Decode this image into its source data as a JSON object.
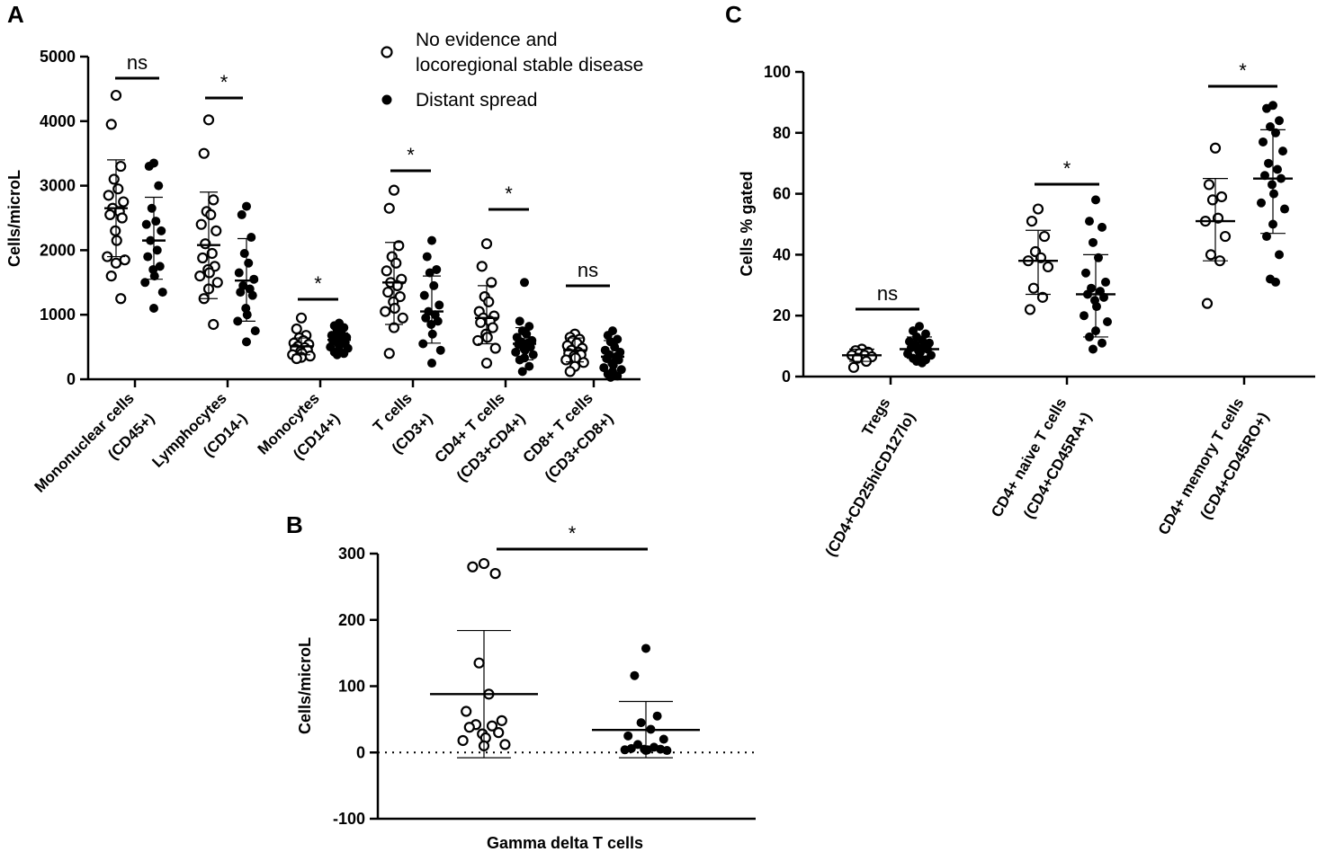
{
  "legend": {
    "open_label_1": "No evidence and",
    "open_label_2": "locoregional stable disease",
    "filled_label": "Distant spread"
  },
  "chart_data": [
    {
      "panel": "A",
      "type": "scatter",
      "ylabel": "Cells/microL",
      "ylim": [
        0,
        5000
      ],
      "yticks": [
        0,
        1000,
        2000,
        3000,
        4000,
        5000
      ],
      "categories": [
        {
          "line1": "Mononuclear cells",
          "line2": "(CD45+)"
        },
        {
          "line1": "Lymphocytes",
          "line2": "(CD14-)"
        },
        {
          "line1": "Monocytes",
          "line2": "(CD14+)"
        },
        {
          "line1": "T cells",
          "line2": "(CD3+)"
        },
        {
          "line1": "CD4+ T cells",
          "line2": "(CD3+CD4+)"
        },
        {
          "line1": "CD8+ T cells",
          "line2": "(CD3+CD8+)"
        }
      ],
      "significance": [
        "ns",
        "*",
        "*",
        "*",
        "*",
        "ns"
      ],
      "series": [
        {
          "name": "No evidence and locoregional stable disease",
          "marker": "open",
          "groups": [
            {
              "mean": 2650,
              "sd_low": 1900,
              "sd_high": 3400,
              "values": [
                4400,
                3950,
                3300,
                3100,
                2950,
                2850,
                2750,
                2650,
                2600,
                2550,
                2500,
                2300,
                2150,
                1900,
                1850,
                1800,
                1600,
                1250
              ]
            },
            {
              "mean": 2080,
              "sd_low": 1250,
              "sd_high": 2900,
              "values": [
                4020,
                3500,
                2780,
                2600,
                2550,
                2400,
                2300,
                2100,
                1950,
                1880,
                1750,
                1700,
                1650,
                1600,
                1500,
                1400,
                1250,
                850
              ]
            },
            {
              "mean": 510,
              "sd_low": 380,
              "sd_high": 640,
              "values": [
                950,
                780,
                680,
                640,
                600,
                560,
                540,
                510,
                490,
                470,
                450,
                430,
                400,
                380,
                360,
                340,
                320
              ]
            },
            {
              "mean": 1500,
              "sd_low": 850,
              "sd_high": 2120,
              "values": [
                2930,
                2650,
                2070,
                1900,
                1800,
                1680,
                1550,
                1500,
                1450,
                1350,
                1280,
                1200,
                1100,
                1050,
                950,
                800,
                400
              ]
            },
            {
              "mean": 950,
              "sd_low": 550,
              "sd_high": 1450,
              "values": [
                2100,
                1750,
                1500,
                1280,
                1200,
                1050,
                980,
                950,
                900,
                880,
                800,
                700,
                650,
                600,
                480,
                250
              ]
            },
            {
              "mean": 450,
              "sd_low": 270,
              "sd_high": 640,
              "values": [
                700,
                650,
                620,
                600,
                560,
                520,
                480,
                450,
                420,
                400,
                380,
                360,
                330,
                300,
                260,
                200,
                120
              ]
            }
          ]
        },
        {
          "name": "Distant spread",
          "marker": "filled",
          "groups": [
            {
              "mean": 2150,
              "sd_low": 1550,
              "sd_high": 2820,
              "values": [
                3350,
                3300,
                3000,
                2650,
                2450,
                2400,
                2300,
                2150,
                2000,
                1900,
                1750,
                1700,
                1600,
                1500,
                1350,
                1100
              ]
            },
            {
              "mean": 1530,
              "sd_low": 900,
              "sd_high": 2180,
              "values": [
                2680,
                2550,
                2200,
                1950,
                1800,
                1650,
                1550,
                1450,
                1400,
                1350,
                1300,
                1100,
                1000,
                900,
                750,
                580
              ]
            },
            {
              "mean": 610,
              "sd_low": 500,
              "sd_high": 720,
              "values": [
                870,
                830,
                800,
                760,
                720,
                680,
                650,
                630,
                610,
                590,
                570,
                550,
                530,
                500,
                480,
                450,
                420,
                400,
                380
              ]
            },
            {
              "mean": 1050,
              "sd_low": 560,
              "sd_high": 1600,
              "values": [
                2150,
                1900,
                1700,
                1650,
                1450,
                1300,
                1150,
                1050,
                1000,
                950,
                900,
                850,
                700,
                550,
                450,
                250
              ]
            },
            {
              "mean": 550,
              "sd_low": 300,
              "sd_high": 800,
              "values": [
                1500,
                900,
                820,
                750,
                700,
                650,
                600,
                580,
                560,
                540,
                500,
                480,
                450,
                420,
                380,
                330,
                300,
                200,
                120
              ]
            },
            {
              "mean": 350,
              "sd_low": 100,
              "sd_high": 600,
              "values": [
                750,
                680,
                620,
                580,
                500,
                450,
                420,
                380,
                350,
                320,
                300,
                250,
                220,
                180,
                150,
                120,
                80,
                50,
                30
              ]
            }
          ]
        }
      ]
    },
    {
      "panel": "B",
      "type": "scatter",
      "ylabel": "Cells/microL",
      "xlabel": "Gamma delta T cells",
      "ylim": [
        -100,
        300
      ],
      "yticks": [
        -100,
        0,
        100,
        200,
        300
      ],
      "reference_line": 0,
      "significance": [
        "*"
      ],
      "series": [
        {
          "name": "No evidence and locoregional stable disease",
          "marker": "open",
          "groups": [
            {
              "mean": 88,
              "sd_low": -8,
              "sd_high": 184,
              "values": [
                285,
                280,
                270,
                135,
                88,
                62,
                48,
                42,
                40,
                38,
                30,
                28,
                22,
                18,
                12,
                10
              ]
            }
          ]
        },
        {
          "name": "Distant spread",
          "marker": "filled",
          "groups": [
            {
              "mean": 34,
              "sd_low": -8,
              "sd_high": 77,
              "values": [
                157,
                116,
                55,
                45,
                35,
                25,
                20,
                12,
                8,
                6,
                5,
                5,
                4,
                4,
                3,
                3
              ]
            }
          ]
        }
      ]
    },
    {
      "panel": "C",
      "type": "scatter",
      "ylabel": "Cells % gated",
      "ylim": [
        0,
        100
      ],
      "yticks": [
        0,
        20,
        40,
        60,
        80,
        100
      ],
      "categories": [
        {
          "line1": "Tregs",
          "line2": "(CD4+CD25hiCD127lo)"
        },
        {
          "line1": "CD4+ naive T cells",
          "line2": "(CD4+CD45RA+)"
        },
        {
          "line1": "CD4+ memory T cells",
          "line2": "(CD4+CD45RO+)"
        }
      ],
      "significance": [
        "ns",
        "*",
        "*"
      ],
      "series": [
        {
          "name": "No evidence and locoregional stable disease",
          "marker": "open",
          "groups": [
            {
              "mean": 7,
              "sd_low": 5,
              "sd_high": 9,
              "values": [
                9,
                8.5,
                8,
                7.5,
                7,
                7,
                6.5,
                6,
                5,
                3
              ]
            },
            {
              "mean": 38,
              "sd_low": 27,
              "sd_high": 48,
              "values": [
                55,
                51,
                46,
                41,
                39,
                38,
                36,
                29,
                26,
                22
              ]
            },
            {
              "mean": 51,
              "sd_low": 38,
              "sd_high": 65,
              "values": [
                75,
                63,
                59,
                58,
                52,
                51,
                46,
                40,
                38,
                24
              ]
            }
          ]
        },
        {
          "name": "Distant spread",
          "marker": "filled",
          "groups": [
            {
              "mean": 9,
              "sd_low": 6,
              "sd_high": 13,
              "values": [
                16.5,
                15,
                14,
                13,
                12,
                11.5,
                11,
                10.5,
                10,
                9.5,
                9,
                8.5,
                8,
                7.5,
                7,
                6.5,
                6,
                5.5,
                5,
                4.5
              ]
            },
            {
              "mean": 27,
              "sd_low": 13,
              "sd_high": 40,
              "values": [
                58,
                51,
                49,
                44,
                39,
                34,
                31,
                29,
                28,
                27,
                26,
                25,
                23,
                20,
                18,
                15,
                13,
                11,
                9
              ]
            },
            {
              "mean": 65,
              "sd_low": 47,
              "sd_high": 81,
              "values": [
                89,
                88,
                84,
                82,
                80,
                77,
                74,
                70,
                68,
                66,
                65,
                63,
                60,
                57,
                55,
                50,
                46,
                40,
                32,
                31
              ]
            }
          ]
        }
      ]
    }
  ]
}
